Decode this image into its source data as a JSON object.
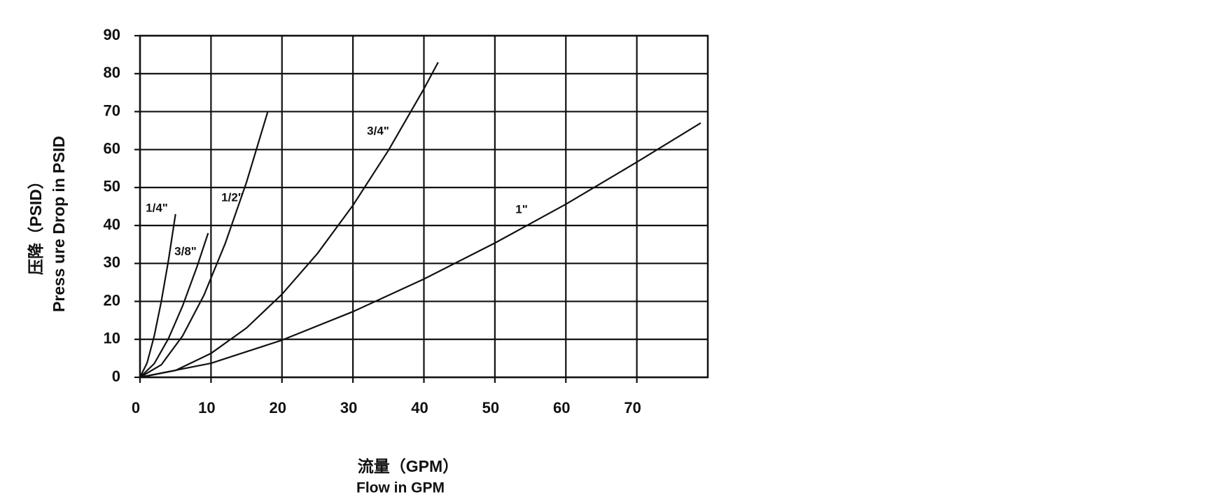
{
  "chart_data": {
    "type": "line",
    "x_label": "流量（GPM）",
    "x_label_en": "Flow in GPM",
    "y_label": "压降（PSID）",
    "y_label_en": "Press ure Drop in PSID",
    "xlim": [
      0,
      80
    ],
    "xticks": [
      0,
      10,
      20,
      30,
      40,
      50,
      60,
      70
    ],
    "ylim": [
      0,
      90
    ],
    "yticks": [
      0,
      10,
      20,
      30,
      40,
      50,
      60,
      70,
      80,
      90
    ],
    "grid": true,
    "series": [
      {
        "name": "1/4\"",
        "color": "#111111",
        "x": [
          0,
          1,
          2,
          3,
          4,
          5
        ],
        "values": [
          0,
          3.8,
          10.9,
          20,
          30.8,
          43
        ]
      },
      {
        "name": "3/8\"",
        "color": "#111111",
        "x": [
          0,
          2,
          4,
          6,
          8,
          9.6
        ],
        "values": [
          0,
          3.6,
          10.2,
          18.8,
          29,
          38
        ]
      },
      {
        "name": "1/2\"",
        "color": "#111111",
        "x": [
          0,
          3,
          6,
          9,
          12,
          15,
          18
        ],
        "values": [
          0,
          3.3,
          10.9,
          21.6,
          35.2,
          51.4,
          70
        ]
      },
      {
        "name": "3/4\"",
        "color": "#111111",
        "x": [
          0,
          5,
          10,
          15,
          20,
          25,
          30,
          35,
          40,
          42
        ],
        "values": [
          0,
          1.8,
          6.3,
          13,
          21.9,
          32.6,
          45.3,
          59.8,
          76,
          83
        ]
      },
      {
        "name": "1\"",
        "color": "#111111",
        "x": [
          0,
          10,
          20,
          30,
          40,
          50,
          60,
          70,
          79
        ],
        "values": [
          0,
          3.7,
          9.8,
          17.3,
          25.9,
          35.4,
          45.6,
          56.7,
          67
        ]
      }
    ]
  }
}
